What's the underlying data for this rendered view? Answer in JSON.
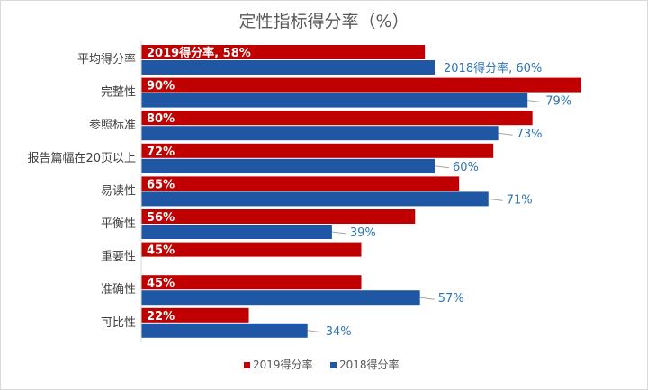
{
  "chart_data": {
    "type": "bar",
    "orientation": "horizontal",
    "title": "定性指标得分率（%）",
    "categories": [
      "平均得分率",
      "完整性",
      "参照标准",
      "报告篇幅在20页以上",
      "易读性",
      "平衡性",
      "重要性",
      "准确性",
      "可比性"
    ],
    "series": [
      {
        "name": "2019得分率",
        "color": "#c00000",
        "values": [
          58,
          90,
          80,
          72,
          65,
          56,
          45,
          45,
          22
        ],
        "labels": [
          "2019得分率, 58%",
          "90%",
          "80%",
          "72%",
          "65%",
          "56%",
          "45%",
          "45%",
          "22%"
        ]
      },
      {
        "name": "2018得分率",
        "color": "#1f57a5",
        "values": [
          60,
          79,
          73,
          60,
          71,
          39,
          null,
          57,
          34
        ],
        "labels": [
          "2018得分率, 60%",
          "79%",
          "73%",
          "60%",
          "71%",
          "39%",
          "",
          "57%",
          "34%"
        ]
      }
    ],
    "xlim": [
      0,
      90
    ],
    "grid": false,
    "legend_position": "bottom"
  }
}
